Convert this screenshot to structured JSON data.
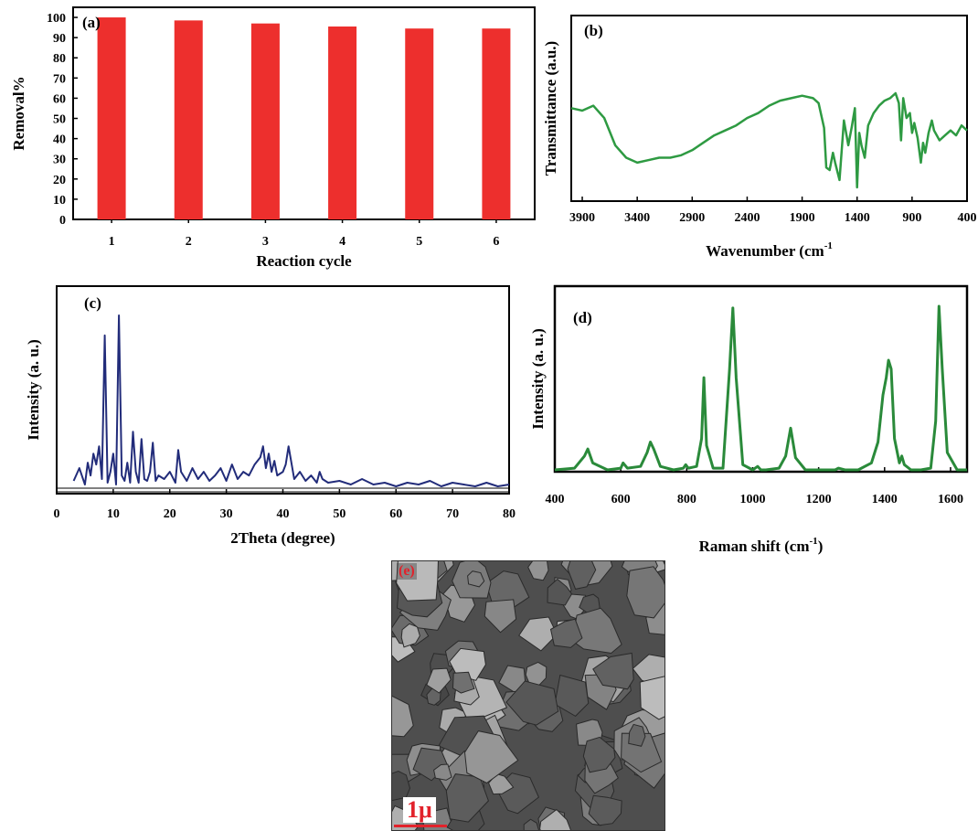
{
  "chart_data": [
    {
      "type": "bar",
      "panel_label": "(a)",
      "categories": [
        "1",
        "2",
        "3",
        "4",
        "5",
        "6"
      ],
      "values": [
        100,
        98.5,
        97,
        95.5,
        94.5,
        94.5
      ],
      "xlabel": "Reaction cycle",
      "ylabel": "Removal%",
      "ylim": [
        0,
        105
      ],
      "yticks": [
        "0",
        "10",
        "20",
        "30",
        "40",
        "50",
        "60",
        "70",
        "80",
        "90",
        "100"
      ],
      "bar_color": "#ed2f2d",
      "grid": false
    },
    {
      "type": "line",
      "panel_label": "(b)",
      "xlabel": "Wavenumber (cm",
      "xlabel_superscript": "-1",
      "ylabel": "Transmittance (a.u.)",
      "xlim": [
        4000,
        400
      ],
      "xticks": [
        "3900",
        "3400",
        "2900",
        "2400",
        "1900",
        "1400",
        "900",
        "400"
      ],
      "line_color": "#2e9a42",
      "x": [
        4000,
        3900,
        3800,
        3700,
        3600,
        3500,
        3400,
        3300,
        3200,
        3100,
        3000,
        2900,
        2800,
        2700,
        2600,
        2500,
        2400,
        2300,
        2200,
        2100,
        2000,
        1900,
        1800,
        1750,
        1700,
        1680,
        1650,
        1620,
        1600,
        1560,
        1520,
        1480,
        1450,
        1420,
        1400,
        1380,
        1360,
        1330,
        1300,
        1250,
        1200,
        1150,
        1100,
        1050,
        1020,
        1000,
        980,
        950,
        920,
        900,
        880,
        850,
        820,
        800,
        780,
        750,
        720,
        700,
        650,
        600,
        550,
        500,
        450,
        400
      ],
      "y": [
        60,
        59,
        61,
        56,
        45,
        40,
        38,
        39,
        40,
        40,
        41,
        43,
        46,
        49,
        51,
        53,
        56,
        58,
        61,
        63,
        64,
        65,
        64,
        62,
        52,
        36,
        35,
        42,
        38,
        31,
        55,
        45,
        52,
        60,
        28,
        50,
        45,
        40,
        53,
        58,
        61,
        63,
        64,
        66,
        62,
        47,
        64,
        56,
        58,
        50,
        54,
        48,
        38,
        46,
        42,
        50,
        55,
        51,
        47,
        49,
        51,
        49,
        53,
        51
      ]
    },
    {
      "type": "line",
      "panel_label": "(c)",
      "xlabel": "2Theta (degree)",
      "ylabel": "Intensity (a. u.)",
      "xlim": [
        0,
        80
      ],
      "xticks": [
        "0",
        "10",
        "20",
        "30",
        "40",
        "50",
        "60",
        "70",
        "80"
      ],
      "line_color": "#222c7a",
      "x": [
        3,
        4,
        5,
        5.5,
        6,
        6.5,
        7,
        7.5,
        8,
        8.5,
        9,
        9.5,
        10,
        10.5,
        11,
        11.5,
        12,
        12.5,
        13,
        13.5,
        14,
        14.5,
        15,
        15.5,
        16,
        16.5,
        17,
        17.5,
        18,
        19,
        20,
        21,
        21.5,
        22,
        23,
        24,
        25,
        26,
        27,
        28,
        29,
        30,
        31,
        32,
        33,
        34,
        35,
        36,
        36.5,
        37,
        37.5,
        38,
        38.5,
        39,
        40,
        40.5,
        41,
        42,
        43,
        44,
        45,
        46,
        46.5,
        47,
        48,
        50,
        52,
        54,
        56,
        58,
        60,
        62,
        64,
        66,
        68,
        70,
        72,
        74,
        76,
        78,
        80
      ],
      "y": [
        5,
        12,
        3,
        15,
        8,
        20,
        14,
        24,
        6,
        85,
        4,
        10,
        20,
        3,
        96,
        8,
        5,
        15,
        4,
        32,
        10,
        4,
        28,
        6,
        5,
        10,
        26,
        5,
        8,
        6,
        10,
        4,
        22,
        10,
        5,
        12,
        6,
        10,
        5,
        8,
        12,
        5,
        14,
        6,
        10,
        8,
        14,
        18,
        24,
        12,
        20,
        10,
        16,
        8,
        10,
        14,
        24,
        6,
        10,
        5,
        8,
        4,
        10,
        6,
        4,
        5,
        3,
        6,
        3,
        4,
        2,
        4,
        3,
        5,
        2,
        4,
        3,
        2,
        4,
        2,
        3
      ]
    },
    {
      "type": "line",
      "panel_label": "(d)",
      "xlabel": "Raman shift (cm",
      "xlabel_superscript": "-1",
      "xlabel_suffix": ")",
      "ylabel": "Intensity (a. u.)",
      "xlim": [
        400,
        1650
      ],
      "xticks": [
        "400",
        "600",
        "800",
        "1000",
        "1200",
        "1400",
        "1600"
      ],
      "line_color": "#2a8a3a",
      "x": [
        400,
        460,
        490,
        500,
        515,
        560,
        600,
        607,
        620,
        660,
        680,
        690,
        700,
        720,
        760,
        790,
        797,
        805,
        830,
        845,
        852,
        860,
        880,
        910,
        930,
        940,
        950,
        970,
        1000,
        1015,
        1025,
        1040,
        1080,
        1100,
        1115,
        1130,
        1160,
        1200,
        1250,
        1260,
        1280,
        1320,
        1360,
        1380,
        1395,
        1405,
        1412,
        1420,
        1430,
        1445,
        1452,
        1460,
        1480,
        1510,
        1540,
        1555,
        1565,
        1575,
        1590,
        1620,
        1650
      ],
      "y": [
        2,
        3,
        10,
        14,
        6,
        2,
        3,
        6,
        3,
        4,
        12,
        18,
        14,
        4,
        2,
        3,
        5,
        3,
        4,
        20,
        55,
        16,
        3,
        3,
        60,
        95,
        55,
        5,
        2,
        4,
        2,
        2,
        3,
        10,
        26,
        9,
        2,
        2,
        2,
        3,
        2,
        2,
        6,
        18,
        45,
        55,
        65,
        60,
        20,
        6,
        10,
        5,
        2,
        2,
        3,
        30,
        96,
        60,
        12,
        2,
        2
      ]
    }
  ],
  "sem_image": {
    "panel_label": "(e)",
    "scale_bar_label": "1μ"
  }
}
